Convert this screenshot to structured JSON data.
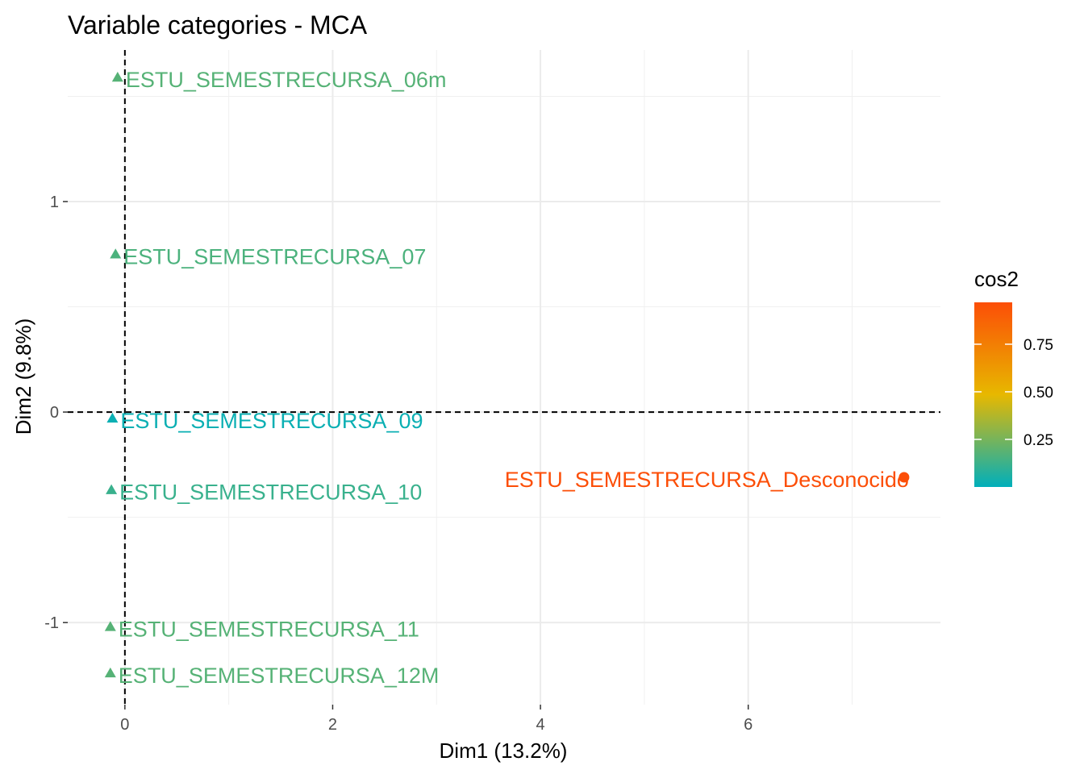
{
  "chart_data": {
    "type": "scatter",
    "title": "Variable categories - MCA",
    "xlabel": "Dim1 (13.2%)",
    "ylabel": "Dim2 (9.8%)",
    "xlim": [
      -0.55,
      7.85
    ],
    "ylim": [
      -1.39,
      1.72
    ],
    "x_ticks": [
      0,
      2,
      4,
      6
    ],
    "x_tick_labels": [
      "0",
      "2",
      "4",
      "6"
    ],
    "y_ticks": [
      -1,
      0,
      1
    ],
    "y_tick_labels": [
      "-1",
      "0",
      "1"
    ],
    "grid": true,
    "reference_lines": {
      "x": 0,
      "y": 0,
      "style": "dashed"
    },
    "points": [
      {
        "label": "ESTU_SEMESTRECURSA_06m",
        "x": -0.07,
        "y": 1.59,
        "cos2": 0.18,
        "shape": "triangle"
      },
      {
        "label": "ESTU_SEMESTRECURSA_07",
        "x": -0.09,
        "y": 0.75,
        "cos2": 0.16,
        "shape": "triangle"
      },
      {
        "label": "ESTU_SEMESTRECURSA_09",
        "x": -0.12,
        "y": -0.03,
        "cos2": 0.02,
        "shape": "triangle"
      },
      {
        "label": "ESTU_SEMESTRECURSA_10",
        "x": -0.13,
        "y": -0.37,
        "cos2": 0.12,
        "shape": "triangle"
      },
      {
        "label": "ESTU_SEMESTRECURSA_11",
        "x": -0.14,
        "y": -1.02,
        "cos2": 0.18,
        "shape": "triangle"
      },
      {
        "label": "ESTU_SEMESTRECURSA_12M",
        "x": -0.14,
        "y": -1.24,
        "cos2": 0.18,
        "shape": "triangle"
      },
      {
        "label": "ESTU_SEMESTRECURSA_Desconocido",
        "x": 7.5,
        "y": -0.31,
        "cos2": 0.97,
        "shape": "circle"
      }
    ],
    "legend": {
      "title": "cos2",
      "placement": "right",
      "range": [
        0.0,
        0.97
      ],
      "ticks": [
        0.25,
        0.5,
        0.75
      ],
      "tick_labels": [
        "0.25",
        "0.50",
        "0.75"
      ],
      "gradient_colors": [
        "#00AFBB",
        "#E7B800",
        "#FC4E07"
      ]
    }
  }
}
